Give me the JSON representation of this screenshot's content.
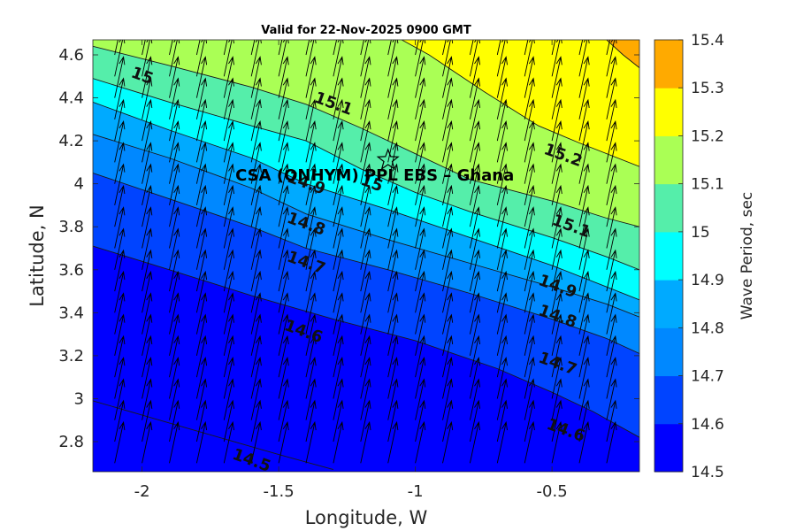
{
  "chart_data": {
    "type": "contour",
    "title": "Valid for 22-Nov-2025 0900 GMT",
    "xlabel": "Longitude, W",
    "ylabel": "Latitude, N",
    "xlim": [
      -2.18,
      -0.18
    ],
    "ylim": [
      2.66,
      4.67
    ],
    "x_ticks": [
      -2,
      -1.5,
      -1,
      -0.5
    ],
    "x_tick_labels": [
      "-2",
      "-1.5",
      "-1",
      "-0.5"
    ],
    "y_ticks": [
      2.8,
      3.0,
      3.2,
      3.4,
      3.6,
      3.8,
      4.0,
      4.2,
      4.4,
      4.6
    ],
    "y_tick_labels": [
      "2.8",
      "3",
      "3.2",
      "3.4",
      "3.6",
      "3.8",
      "4",
      "4.2",
      "4.4",
      "4.6"
    ],
    "colorbar": {
      "label": "Wave Period, sec",
      "levels": [
        14.5,
        14.6,
        14.7,
        14.8,
        14.9,
        15.0,
        15.1,
        15.2,
        15.3,
        15.4
      ],
      "tick_labels": [
        "14.5",
        "14.6",
        "14.7",
        "14.8",
        "14.9",
        "15",
        "15.1",
        "15.2",
        "15.3",
        "15.4"
      ],
      "colors": [
        "#0000ff",
        "#0044ff",
        "#0088ff",
        "#00aaff",
        "#00ffff",
        "#55eeaa",
        "#aaff55",
        "#ffff00",
        "#ffaa00",
        "#ff5500"
      ]
    },
    "contours": [
      {
        "level": 14.5,
        "label": "14.5",
        "points": [
          [
            -2.18,
            2.99
          ],
          [
            -1.8,
            2.85
          ],
          [
            -1.5,
            2.74
          ],
          [
            -1.3,
            2.67
          ]
        ]
      },
      {
        "level": 14.6,
        "label": "14.6",
        "points": [
          [
            -2.18,
            3.71
          ],
          [
            -1.9,
            3.6
          ],
          [
            -1.6,
            3.48
          ],
          [
            -1.3,
            3.37
          ],
          [
            -1.0,
            3.27
          ],
          [
            -0.7,
            3.14
          ],
          [
            -0.5,
            3.03
          ],
          [
            -0.35,
            2.94
          ],
          [
            -0.18,
            2.82
          ]
        ]
      },
      {
        "level": 14.7,
        "label": "14.7",
        "points": [
          [
            -2.18,
            4.05
          ],
          [
            -1.9,
            3.93
          ],
          [
            -1.6,
            3.8
          ],
          [
            -1.4,
            3.7
          ],
          [
            -1.1,
            3.6
          ],
          [
            -0.8,
            3.49
          ],
          [
            -0.5,
            3.37
          ],
          [
            -0.3,
            3.28
          ],
          [
            -0.18,
            3.21
          ]
        ]
      },
      {
        "level": 14.8,
        "label": "14.8",
        "points": [
          [
            -2.18,
            4.23
          ],
          [
            -1.9,
            4.12
          ],
          [
            -1.6,
            3.98
          ],
          [
            -1.4,
            3.86
          ],
          [
            -1.1,
            3.74
          ],
          [
            -0.8,
            3.63
          ],
          [
            -0.5,
            3.52
          ],
          [
            -0.3,
            3.44
          ],
          [
            -0.18,
            3.38
          ]
        ]
      },
      {
        "level": 14.9,
        "label": "14.9",
        "points": [
          [
            -2.18,
            4.38
          ],
          [
            -1.9,
            4.25
          ],
          [
            -1.6,
            4.12
          ],
          [
            -1.4,
            4.0
          ],
          [
            -1.1,
            3.88
          ],
          [
            -0.8,
            3.75
          ],
          [
            -0.5,
            3.62
          ],
          [
            -0.3,
            3.52
          ],
          [
            -0.18,
            3.46
          ]
        ]
      },
      {
        "level": 15.0,
        "label": "15",
        "points": [
          [
            -2.18,
            4.49
          ],
          [
            -1.9,
            4.38
          ],
          [
            -1.6,
            4.27
          ],
          [
            -1.4,
            4.2
          ],
          [
            -1.2,
            4.07
          ],
          [
            -1.0,
            3.96
          ],
          [
            -0.8,
            3.87
          ],
          [
            -0.5,
            3.75
          ],
          [
            -0.3,
            3.66
          ],
          [
            -0.18,
            3.6
          ]
        ]
      },
      {
        "level": 15.1,
        "label": "15.1",
        "points": [
          [
            -2.18,
            4.64
          ],
          [
            -1.9,
            4.55
          ],
          [
            -1.6,
            4.45
          ],
          [
            -1.4,
            4.37
          ],
          [
            -1.2,
            4.26
          ],
          [
            -1.0,
            4.14
          ],
          [
            -0.8,
            4.02
          ],
          [
            -0.5,
            3.92
          ],
          [
            -0.3,
            3.84
          ],
          [
            -0.18,
            3.8
          ]
        ]
      },
      {
        "level": 15.2,
        "label": "15.2",
        "points": [
          [
            -1.05,
            4.67
          ],
          [
            -0.95,
            4.6
          ],
          [
            -0.75,
            4.43
          ],
          [
            -0.55,
            4.27
          ],
          [
            -0.4,
            4.19
          ],
          [
            -0.18,
            4.08
          ]
        ]
      },
      {
        "level": 15.3,
        "label": "15.3",
        "points": [
          [
            -0.3,
            4.67
          ],
          [
            -0.24,
            4.6
          ],
          [
            -0.18,
            4.54
          ]
        ]
      }
    ],
    "contour_labels": [
      {
        "text": "15",
        "lon": -2.0,
        "lat": 4.5
      },
      {
        "text": "15.1",
        "lon": -1.3,
        "lat": 4.37
      },
      {
        "text": "15.2",
        "lon": -0.46,
        "lat": 4.13
      },
      {
        "text": "14.9",
        "lon": -1.4,
        "lat": 4.0
      },
      {
        "text": "15",
        "lon": -1.16,
        "lat": 4.0
      },
      {
        "text": "14.8",
        "lon": -1.4,
        "lat": 3.81
      },
      {
        "text": "15.1",
        "lon": -0.43,
        "lat": 3.8
      },
      {
        "text": "14.7",
        "lon": -1.4,
        "lat": 3.63
      },
      {
        "text": "14.9",
        "lon": -0.48,
        "lat": 3.52
      },
      {
        "text": "14.8",
        "lon": -0.48,
        "lat": 3.38
      },
      {
        "text": "14.6",
        "lon": -1.41,
        "lat": 3.31
      },
      {
        "text": "14.7",
        "lon": -0.48,
        "lat": 3.16
      },
      {
        "text": "14.6",
        "lon": -0.45,
        "lat": 2.85
      },
      {
        "text": "14.5",
        "lon": -1.6,
        "lat": 2.71
      }
    ],
    "vectors": {
      "description": "mean wave direction arrows",
      "lon_start": -2.1,
      "lon_step": 0.1,
      "count_lon": 19,
      "lat_start": 2.7,
      "lat_step": 0.1,
      "count_lat": 20,
      "u": 0.032,
      "v": 0.19
    },
    "site": {
      "label": "CSA (ONHYM) PPL EBS  – Ghana",
      "lon": -1.1,
      "lat": 4.11
    }
  }
}
